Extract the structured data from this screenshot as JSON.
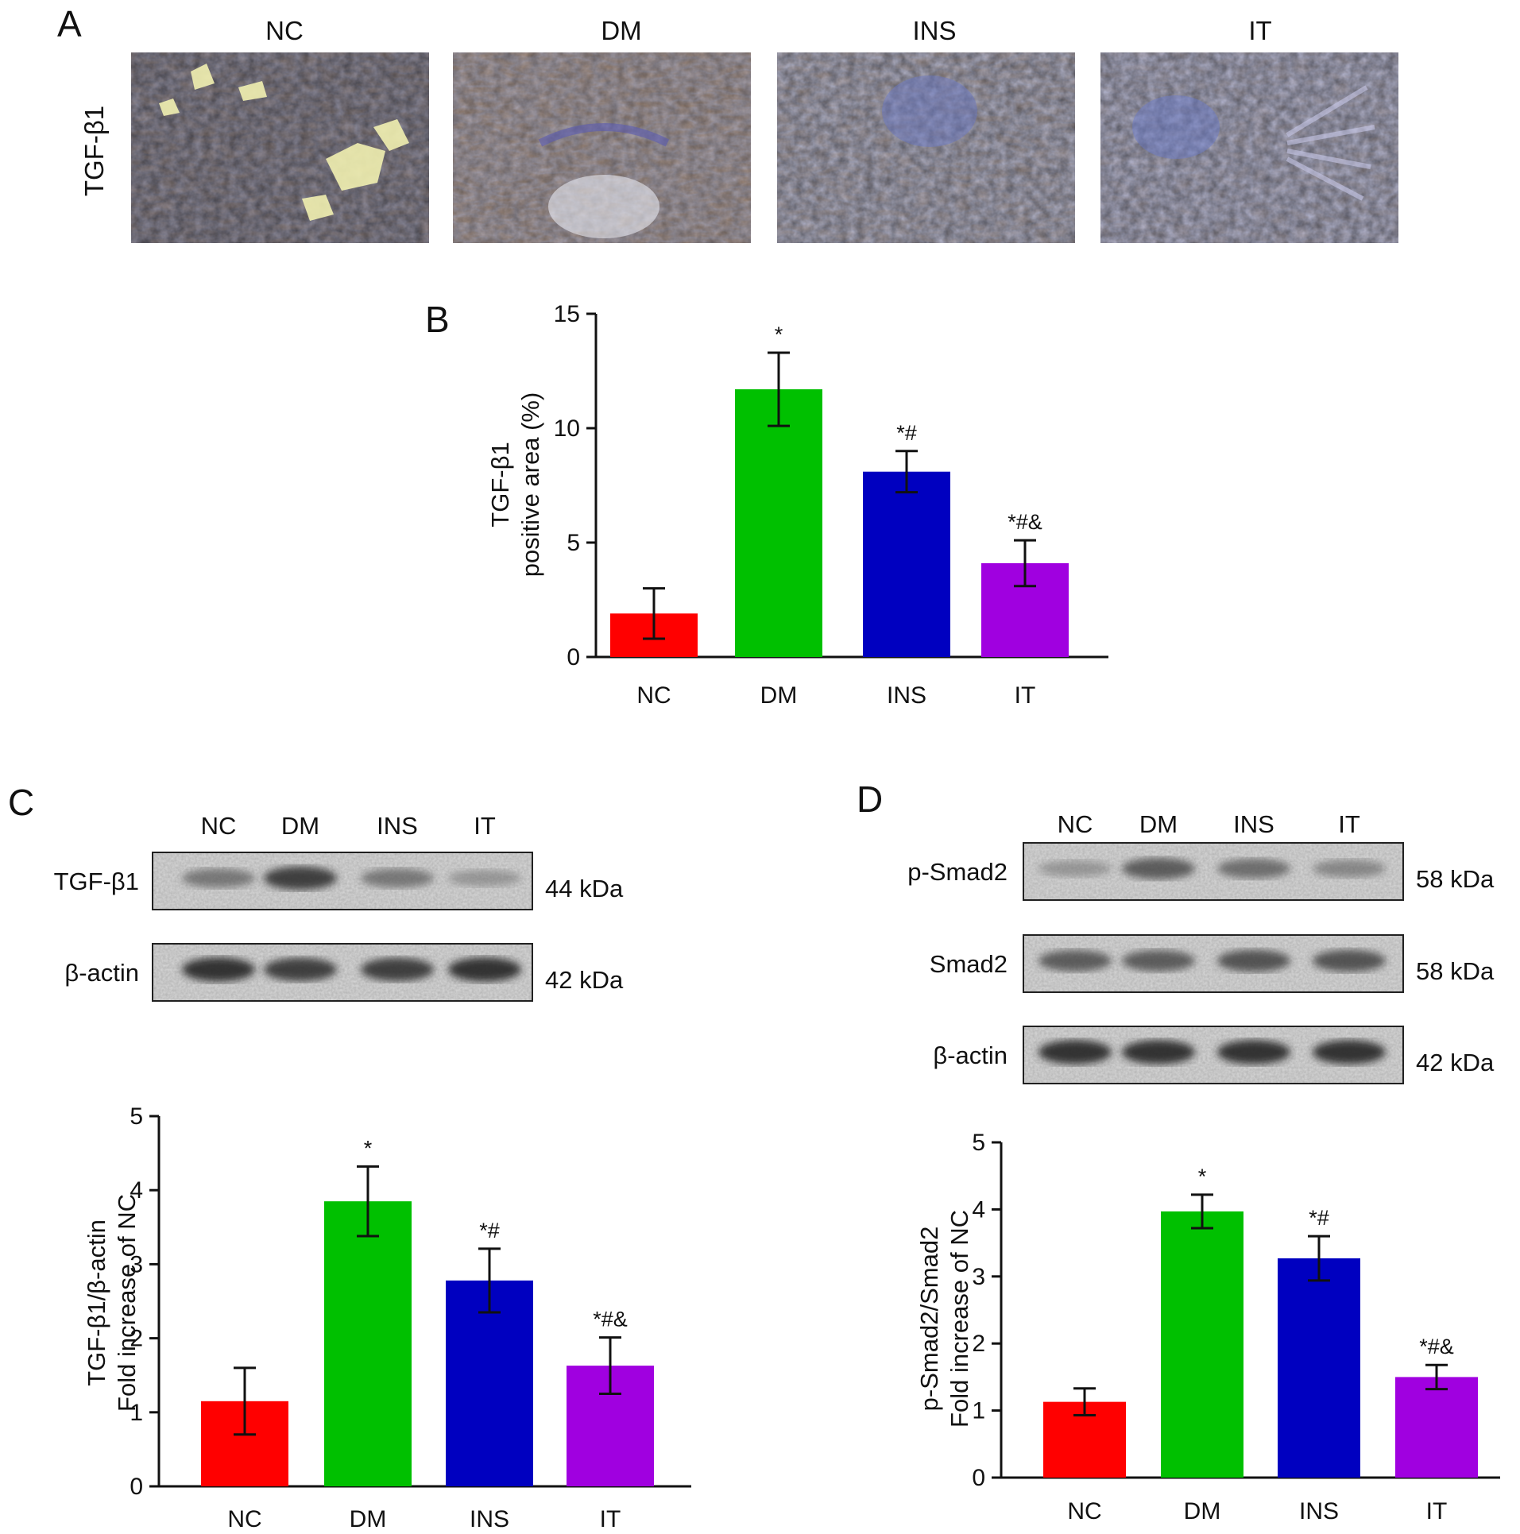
{
  "panels": {
    "A": {
      "letter": "A",
      "row_label": "TGF-β1",
      "groups": [
        "NC",
        "DM",
        "INS",
        "IT"
      ]
    },
    "C": {
      "letter": "C",
      "lanes": [
        "NC",
        "DM",
        "INS",
        "IT"
      ],
      "bands": [
        {
          "label": "TGF-β1",
          "kda": "44 kDa",
          "intensity": [
            0.55,
            0.85,
            0.55,
            0.35
          ]
        },
        {
          "label": "β-actin",
          "kda": "42 kDa",
          "intensity": [
            0.9,
            0.85,
            0.85,
            0.9
          ]
        }
      ]
    },
    "D": {
      "letter": "D",
      "lanes": [
        "NC",
        "DM",
        "INS",
        "IT"
      ],
      "bands": [
        {
          "label": "p-Smad2",
          "kda": "58 kDa",
          "intensity": [
            0.35,
            0.7,
            0.6,
            0.45
          ]
        },
        {
          "label": "Smad2",
          "kda": "58 kDa",
          "intensity": [
            0.7,
            0.7,
            0.75,
            0.75
          ]
        },
        {
          "label": "β-actin",
          "kda": "42 kDa",
          "intensity": [
            0.9,
            0.9,
            0.9,
            0.9
          ]
        }
      ]
    }
  },
  "colors": {
    "NC": "#ff0000",
    "DM": "#00c000",
    "INS": "#0000c0",
    "IT": "#a000e0"
  },
  "chart_data": [
    {
      "id": "B",
      "letter": "B",
      "type": "bar",
      "categories": [
        "NC",
        "DM",
        "INS",
        "IT"
      ],
      "values": [
        1.9,
        11.7,
        8.1,
        4.1
      ],
      "errors": [
        1.1,
        1.6,
        0.9,
        1.0
      ],
      "annotations": [
        "",
        "*",
        "*#",
        "*#&"
      ],
      "ylabel": [
        "TGF-β1",
        "positive area (%)"
      ],
      "ylim": [
        0,
        15
      ],
      "yticks": [
        0,
        5,
        10,
        15
      ]
    },
    {
      "id": "C",
      "type": "bar",
      "categories": [
        "NC",
        "DM",
        "INS",
        "IT"
      ],
      "values": [
        1.15,
        3.85,
        2.78,
        1.63
      ],
      "errors": [
        0.45,
        0.47,
        0.43,
        0.38
      ],
      "annotations": [
        "",
        "*",
        "*#",
        "*#&"
      ],
      "ylabel": [
        "TGF-β1/β-actin",
        "Fold increase of NC"
      ],
      "ylim": [
        0,
        5
      ],
      "yticks": [
        0,
        1,
        2,
        3,
        4,
        5
      ]
    },
    {
      "id": "D",
      "type": "bar",
      "categories": [
        "NC",
        "DM",
        "INS",
        "IT"
      ],
      "values": [
        1.13,
        3.97,
        3.27,
        1.5
      ],
      "errors": [
        0.2,
        0.25,
        0.33,
        0.18
      ],
      "annotations": [
        "",
        "*",
        "*#",
        "*#&"
      ],
      "ylabel": [
        "p-Smad2/Smad2",
        "Fold increase of NC"
      ],
      "ylim": [
        0,
        5
      ],
      "yticks": [
        0,
        1,
        2,
        3,
        4,
        5
      ]
    }
  ]
}
